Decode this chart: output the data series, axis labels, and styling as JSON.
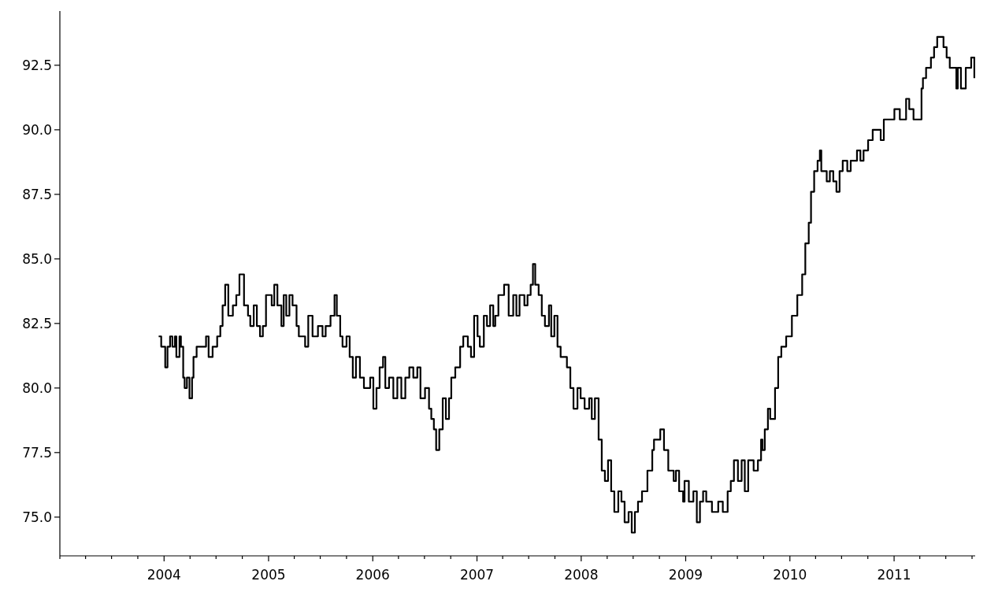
{
  "chart_data": {
    "type": "step",
    "xlim": [
      "2003-01-01",
      "2011-10-12"
    ],
    "ylim": [
      73.5,
      94.6
    ],
    "yticks": [
      {
        "value": 75,
        "label": "75.0"
      },
      {
        "value": 77.5,
        "label": "77.5"
      },
      {
        "value": 80,
        "label": "80.0"
      },
      {
        "value": 82.5,
        "label": "82.5"
      },
      {
        "value": 85,
        "label": "85.0"
      },
      {
        "value": 87.5,
        "label": "87.5"
      },
      {
        "value": 90,
        "label": "90.0"
      },
      {
        "value": 92.5,
        "label": "92.5"
      }
    ],
    "xticks": [
      {
        "value": "2003-01",
        "label": null
      },
      {
        "value": "2003-04",
        "label": null
      },
      {
        "value": "2003-07",
        "label": null
      },
      {
        "value": "2003-10",
        "label": null
      },
      "2004",
      {
        "value": "2004-04",
        "label": null
      },
      {
        "value": "2004-07",
        "label": null
      },
      {
        "value": "2004-10",
        "label": null
      },
      "2005",
      {
        "value": "2005-04",
        "label": null
      },
      {
        "value": "2005-07",
        "label": null
      },
      {
        "value": "2005-10",
        "label": null
      },
      "2006",
      {
        "value": "2006-04",
        "label": null
      },
      {
        "value": "2006-07",
        "label": null
      },
      {
        "value": "2006-10",
        "label": null
      },
      "2007",
      {
        "value": "2007-04",
        "label": null
      },
      {
        "value": "2007-07",
        "label": null
      },
      {
        "value": "2007-10",
        "label": null
      },
      "2008",
      {
        "value": "2008-04",
        "label": null
      },
      {
        "value": "2008-07",
        "label": null
      },
      {
        "value": "2008-10",
        "label": null
      },
      "2009",
      {
        "value": "2009-04",
        "label": null
      },
      {
        "value": "2009-07",
        "label": null
      },
      {
        "value": "2009-10",
        "label": null
      },
      "2010",
      {
        "value": "2010-04",
        "label": null
      },
      {
        "value": "2010-07",
        "label": null
      },
      {
        "value": "2010-10",
        "label": null
      },
      "2011",
      {
        "value": "2011-04",
        "label": null
      },
      {
        "value": "2011-07",
        "label": null
      },
      {
        "value": "2011-10",
        "label": null
      }
    ],
    "series": [
      {
        "color": "#000000",
        "x": [
          "2003-12-13",
          "2003-12-22",
          "2004-01-05",
          "2004-01-13",
          "2004-01-22",
          "2004-01-30",
          "2004-02-08",
          "2004-02-13",
          "2004-02-24",
          "2004-02-29",
          "2004-03-08",
          "2004-03-13",
          "2004-03-21",
          "2004-03-30",
          "2004-04-08",
          "2004-04-13",
          "2004-04-24",
          "2004-05-27",
          "2004-06-05",
          "2004-06-19",
          "2004-07-05",
          "2004-07-16",
          "2004-07-24",
          "2004-08-02",
          "2004-08-13",
          "2004-08-29",
          "2004-09-10",
          "2004-09-21",
          "2004-10-07",
          "2004-10-21",
          "2004-10-29",
          "2004-11-10",
          "2004-11-21",
          "2004-12-02",
          "2004-12-12",
          "2004-12-23",
          "2005-01-12",
          "2005-01-21",
          "2005-02-01",
          "2005-02-15",
          "2005-02-23",
          "2005-03-04",
          "2005-03-15",
          "2005-03-26",
          "2005-04-09",
          "2005-04-17",
          "2005-05-09",
          "2005-05-20",
          "2005-06-04",
          "2005-06-23",
          "2005-07-09",
          "2005-07-20",
          "2005-08-06",
          "2005-08-20",
          "2005-08-28",
          "2005-09-09",
          "2005-09-17",
          "2005-10-01",
          "2005-10-12",
          "2005-10-23",
          "2005-11-03",
          "2005-11-17",
          "2005-12-01",
          "2005-12-23",
          "2006-01-03",
          "2006-01-14",
          "2006-01-25",
          "2006-02-06",
          "2006-02-14",
          "2006-02-27",
          "2006-03-14",
          "2006-03-28",
          "2006-04-11",
          "2006-04-25",
          "2006-05-09",
          "2006-05-23",
          "2006-06-06",
          "2006-06-17",
          "2006-07-03",
          "2006-07-17",
          "2006-07-25",
          "2006-08-03",
          "2006-08-11",
          "2006-08-22",
          "2006-09-03",
          "2006-09-14",
          "2006-09-25",
          "2006-10-03",
          "2006-10-17",
          "2006-11-03",
          "2006-11-14",
          "2006-11-30",
          "2006-12-11",
          "2006-12-22",
          "2007-01-03",
          "2007-01-11",
          "2007-01-25",
          "2007-02-05",
          "2007-02-16",
          "2007-02-27",
          "2007-03-06",
          "2007-03-17",
          "2007-04-06",
          "2007-04-22",
          "2007-05-08",
          "2007-05-19",
          "2007-05-30",
          "2007-06-16",
          "2007-06-27",
          "2007-07-08",
          "2007-07-16",
          "2007-07-24",
          "2007-08-05",
          "2007-08-16",
          "2007-08-27",
          "2007-09-10",
          "2007-09-18",
          "2007-09-29",
          "2007-10-10",
          "2007-10-21",
          "2007-11-12",
          "2007-11-24",
          "2007-12-05",
          "2007-12-19",
          "2007-12-30",
          "2008-01-13",
          "2008-01-29",
          "2008-02-07",
          "2008-02-18",
          "2008-03-02",
          "2008-03-13",
          "2008-03-24",
          "2008-04-04",
          "2008-04-15",
          "2008-04-26",
          "2008-05-10",
          "2008-05-21",
          "2008-06-01",
          "2008-06-15",
          "2008-06-26",
          "2008-07-07",
          "2008-07-18",
          "2008-08-01",
          "2008-08-20",
          "2008-09-06",
          "2008-09-12",
          "2008-10-04",
          "2008-10-17",
          "2008-11-01",
          "2008-11-20",
          "2008-11-28",
          "2008-12-09",
          "2008-12-23",
          "2008-12-28",
          "2009-01-12",
          "2009-01-28",
          "2009-02-09",
          "2009-02-20",
          "2009-03-03",
          "2009-03-14",
          "2009-04-03",
          "2009-04-25",
          "2009-05-11",
          "2009-05-28",
          "2009-06-08",
          "2009-06-19",
          "2009-07-03",
          "2009-07-16",
          "2009-07-27",
          "2009-08-08",
          "2009-08-27",
          "2009-09-11",
          "2009-09-22",
          "2009-09-27",
          "2009-10-05",
          "2009-10-16",
          "2009-10-24",
          "2009-11-10",
          "2009-11-21",
          "2009-12-02",
          "2009-12-19",
          "2010-01-08",
          "2010-01-27",
          "2010-02-13",
          "2010-02-24",
          "2010-03-08",
          "2010-03-16",
          "2010-03-27",
          "2010-04-08",
          "2010-04-16",
          "2010-04-21",
          "2010-05-10",
          "2010-05-21",
          "2010-06-02",
          "2010-06-13",
          "2010-06-24",
          "2010-07-05",
          "2010-07-21",
          "2010-08-02",
          "2010-08-24",
          "2010-09-05",
          "2010-09-16",
          "2010-10-02",
          "2010-10-18",
          "2010-11-15",
          "2010-11-26",
          "2011-01-02",
          "2011-01-21",
          "2011-02-12",
          "2011-02-23",
          "2011-03-10",
          "2011-04-07",
          "2011-04-12",
          "2011-04-23",
          "2011-05-10",
          "2011-05-21",
          "2011-06-01",
          "2011-06-23",
          "2011-07-04",
          "2011-07-15",
          "2011-08-07",
          "2011-08-12",
          "2011-08-23",
          "2011-09-09",
          "2011-09-28",
          "2011-10-09"
        ],
        "values": [
          82.0,
          81.6,
          80.8,
          81.6,
          82.0,
          81.6,
          82.0,
          81.2,
          82.0,
          81.6,
          80.4,
          80.0,
          80.4,
          79.6,
          80.4,
          81.2,
          81.6,
          82.0,
          81.2,
          81.6,
          82.0,
          82.4,
          83.2,
          84.0,
          82.8,
          83.2,
          83.6,
          84.4,
          83.2,
          82.8,
          82.4,
          83.2,
          82.4,
          82.0,
          82.4,
          83.6,
          83.2,
          84.0,
          83.2,
          82.4,
          83.6,
          82.8,
          83.6,
          83.2,
          82.4,
          82.0,
          81.6,
          82.8,
          82.0,
          82.4,
          82.0,
          82.4,
          82.8,
          83.6,
          82.8,
          82.0,
          81.6,
          82.0,
          81.2,
          80.4,
          81.2,
          80.4,
          80.0,
          80.4,
          79.2,
          80.0,
          80.8,
          81.2,
          80.0,
          80.4,
          79.6,
          80.4,
          79.6,
          80.4,
          80.8,
          80.4,
          80.8,
          79.6,
          80.0,
          79.2,
          78.8,
          78.4,
          77.6,
          78.4,
          79.6,
          78.8,
          79.6,
          80.4,
          80.8,
          81.6,
          82.0,
          81.6,
          81.2,
          82.8,
          82.0,
          81.6,
          82.8,
          82.4,
          83.2,
          82.4,
          82.8,
          83.6,
          84.0,
          82.8,
          83.6,
          82.8,
          83.6,
          83.2,
          83.6,
          84.0,
          84.8,
          84.0,
          83.6,
          82.8,
          82.4,
          83.2,
          82.0,
          82.8,
          81.6,
          81.2,
          80.8,
          80.0,
          79.2,
          80.0,
          79.6,
          79.2,
          79.6,
          78.8,
          79.6,
          78.0,
          76.8,
          76.4,
          77.2,
          76.0,
          75.2,
          76.0,
          75.6,
          74.8,
          75.2,
          74.4,
          75.2,
          75.6,
          76.0,
          76.8,
          77.6,
          78.0,
          78.4,
          77.6,
          76.8,
          76.4,
          76.8,
          76.0,
          75.6,
          76.4,
          75.6,
          76.0,
          74.8,
          75.6,
          76.0,
          75.6,
          75.2,
          75.6,
          75.2,
          76.0,
          76.4,
          77.2,
          76.4,
          77.2,
          76.0,
          77.2,
          76.8,
          77.2,
          78.0,
          77.6,
          78.4,
          79.2,
          78.8,
          80.0,
          81.2,
          81.6,
          82.0,
          82.8,
          83.6,
          84.4,
          85.6,
          86.4,
          87.6,
          88.4,
          88.8,
          89.2,
          88.4,
          88.0,
          88.4,
          88.0,
          87.6,
          88.4,
          88.8,
          88.4,
          88.8,
          89.2,
          88.8,
          89.2,
          89.6,
          90.0,
          89.6,
          90.4,
          90.8,
          90.4,
          91.2,
          90.8,
          90.4,
          91.6,
          92.0,
          92.4,
          92.8,
          93.2,
          93.6,
          93.2,
          92.8,
          92.4,
          91.6,
          92.4,
          91.6,
          92.4,
          92.8,
          92.0
        ]
      }
    ]
  }
}
